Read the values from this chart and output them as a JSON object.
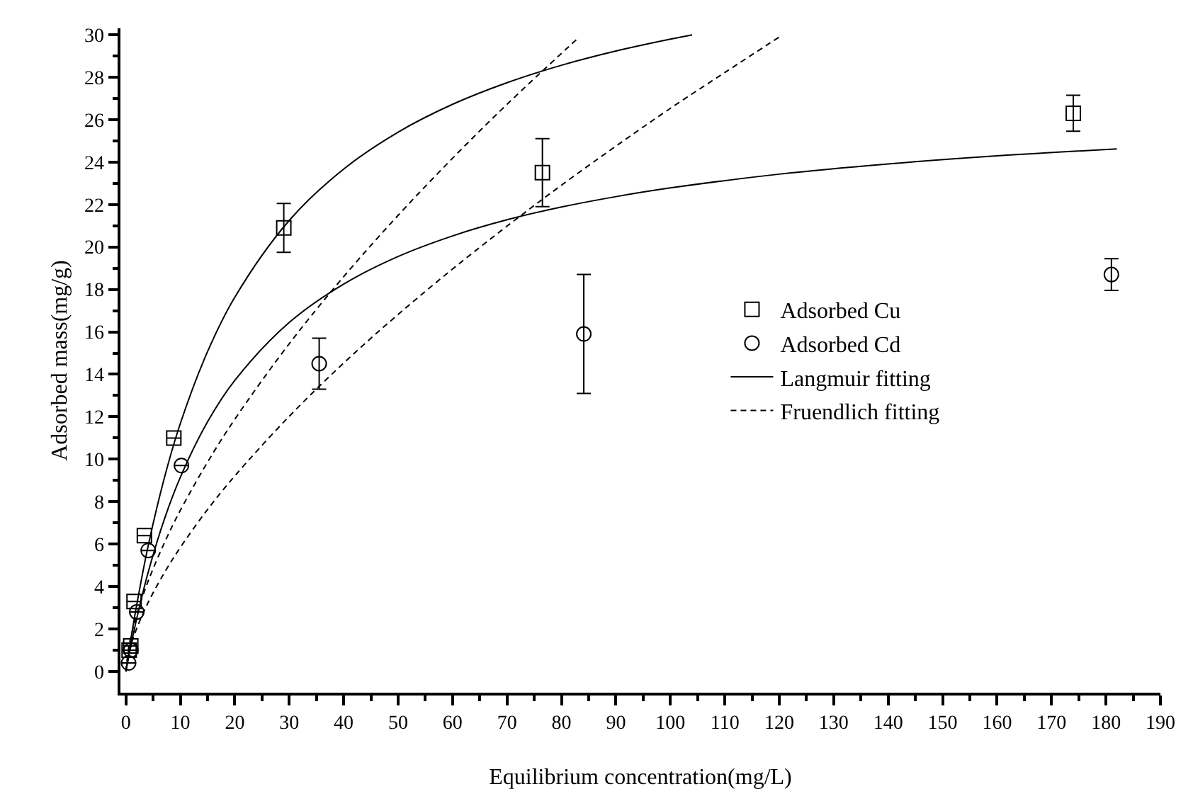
{
  "chart_data": {
    "type": "scatter",
    "xlabel": "Equilibrium concentration(mg/L)",
    "ylabel": "Adsorbed mass(mg/g)",
    "xlim": [
      -1,
      190
    ],
    "xticks": [
      0,
      10,
      20,
      30,
      40,
      50,
      60,
      70,
      80,
      90,
      100,
      110,
      120,
      130,
      140,
      150,
      160,
      170,
      180,
      190
    ],
    "ylim": [
      -1,
      30.3
    ],
    "yticks": [
      0,
      2,
      4,
      6,
      8,
      10,
      12,
      14,
      16,
      18,
      20,
      22,
      24,
      26,
      28,
      30
    ],
    "legend": "center right",
    "series": [
      {
        "name": "Adsorbed Cu",
        "marker": "square",
        "color": "#000000",
        "x": [
          0.6,
          0.9,
          1.5,
          3.4,
          8.8,
          29.0,
          76.5,
          174
        ],
        "values": [
          1.0,
          1.2,
          3.3,
          6.4,
          11.0,
          20.9,
          23.5,
          26.3
        ],
        "errors": [
          null,
          null,
          null,
          null,
          null,
          1.15,
          1.6,
          0.85
        ]
      },
      {
        "name": "Adsorbed Cd",
        "marker": "circle",
        "color": "#000000",
        "x": [
          0.5,
          0.9,
          2.0,
          4.1,
          10.2,
          35.5,
          84.1,
          181
        ],
        "values": [
          0.4,
          1.0,
          2.8,
          5.7,
          9.7,
          14.5,
          15.9,
          18.7
        ],
        "errors": [
          null,
          null,
          null,
          null,
          null,
          1.2,
          2.8,
          0.75
        ]
      },
      {
        "name": "Langmuir fitting",
        "type": "line",
        "marker": "none",
        "line_style": "solid",
        "color": "#000000",
        "x": [
          0,
          1,
          2,
          4,
          7,
          10,
          15,
          20,
          30,
          40,
          50,
          60,
          70,
          80,
          90,
          100,
          104
        ],
        "values": [
          0,
          1.65,
          3.15,
          5.8,
          9.05,
          11.68,
          15.07,
          17.63,
          21.25,
          23.67,
          25.41,
          26.72,
          27.74,
          28.56,
          29.23,
          29.79,
          29.99
        ]
      },
      {
        "type": "line",
        "marker": "none",
        "line_style": "solid",
        "color": "#000000",
        "x": [
          0,
          1,
          2,
          4,
          7,
          10,
          15,
          20,
          30,
          40,
          50,
          60,
          70,
          80,
          90,
          100,
          120,
          140,
          160,
          182
        ],
        "values": [
          0,
          1.31,
          2.5,
          4.58,
          7.12,
          9.15,
          11.76,
          13.71,
          16.44,
          18.25,
          19.55,
          20.52,
          21.28,
          21.88,
          22.37,
          22.78,
          23.43,
          23.91,
          24.29,
          24.62
        ]
      },
      {
        "name": "Fruendlich fitting",
        "type": "line",
        "marker": "none",
        "line_style": "dashed",
        "color": "#000000",
        "x": [
          0,
          0.5,
          1,
          2,
          4,
          7,
          10,
          15,
          20,
          30,
          40,
          50,
          60,
          70,
          83
        ],
        "values": [
          0,
          1.09,
          1.71,
          2.68,
          4.19,
          6.02,
          7.59,
          9.86,
          11.88,
          15.44,
          18.6,
          21.49,
          24.18,
          26.72,
          29.83
        ]
      },
      {
        "type": "line",
        "marker": "none",
        "line_style": "dashed",
        "color": "#000000",
        "x": [
          0,
          1,
          2,
          4,
          7,
          10,
          15,
          20,
          30,
          40,
          50,
          60,
          70,
          80,
          90,
          100,
          110,
          120
        ],
        "values": [
          0,
          1.29,
          2.03,
          3.2,
          4.62,
          5.84,
          7.63,
          9.21,
          12.02,
          14.53,
          16.82,
          18.96,
          20.98,
          22.91,
          24.75,
          26.53,
          28.22,
          29.89
        ]
      }
    ]
  }
}
